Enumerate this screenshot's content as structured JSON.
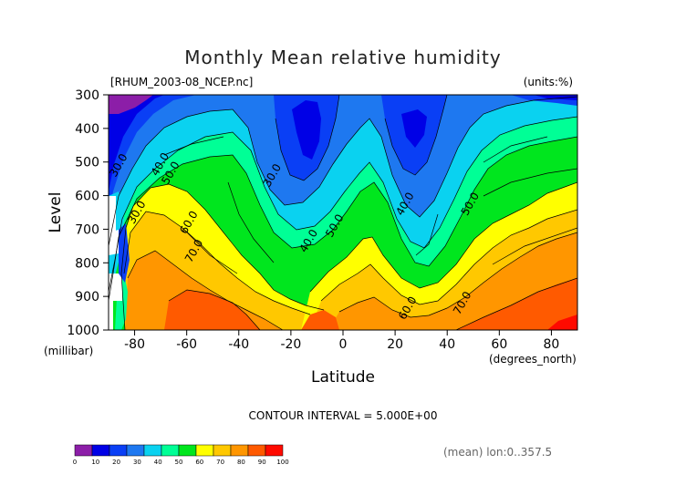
{
  "chart_data": {
    "type": "heatmap",
    "subtype": "filled-contour",
    "title": "Monthly Mean relative humidity",
    "file_label": "[RHUM_2003-08_NCEP.nc]",
    "units_label": "(units:%)",
    "xlabel": "Latitude",
    "x_units": "(degrees_north)",
    "ylabel": "Level",
    "y_units": "(millibar)",
    "xlim": [
      -90,
      90
    ],
    "ylim": [
      1000,
      300
    ],
    "x_ticks": [
      -80,
      -60,
      -40,
      -20,
      0,
      20,
      40,
      60,
      80
    ],
    "y_ticks": [
      300,
      400,
      500,
      600,
      700,
      800,
      900,
      1000
    ],
    "contour_interval_label": "CONTOUR INTERVAL = 5.000E+00",
    "footer_label": "(mean) lon:0..357.5",
    "colorbar": {
      "ticks": [
        "0",
        "10",
        "20",
        "30",
        "40",
        "50",
        "60",
        "70",
        "80",
        "90",
        "100"
      ],
      "colors": [
        "#8c1ea8",
        "#0000e6",
        "#0a3ff5",
        "#1e78f0",
        "#0ad2f0",
        "#00ff96",
        "#00e61e",
        "#ffff00",
        "#ffc800",
        "#ff9600",
        "#ff5a00",
        "#ff0a00"
      ]
    },
    "contour_labels": [
      {
        "text": "30.0",
        "lat": -85,
        "lev": 515
      },
      {
        "text": "40.0",
        "lat": -69,
        "lev": 512
      },
      {
        "text": "50.0",
        "lat": -65,
        "lev": 538
      },
      {
        "text": "30.0",
        "lat": -78,
        "lev": 655
      },
      {
        "text": "60.0",
        "lat": -58,
        "lev": 685
      },
      {
        "text": "70.0",
        "lat": -56,
        "lev": 770
      },
      {
        "text": "30.0",
        "lat": -26,
        "lev": 545
      },
      {
        "text": "40.0",
        "lat": -12,
        "lev": 740
      },
      {
        "text": "50.0",
        "lat": -2,
        "lev": 695
      },
      {
        "text": "40.0",
        "lat": 25,
        "lev": 630
      },
      {
        "text": "50.0",
        "lat": 50,
        "lev": 630
      },
      {
        "text": "60.0",
        "lat": 26,
        "lev": 940
      },
      {
        "text": "70.0",
        "lat": 47,
        "lev": 925
      }
    ]
  }
}
